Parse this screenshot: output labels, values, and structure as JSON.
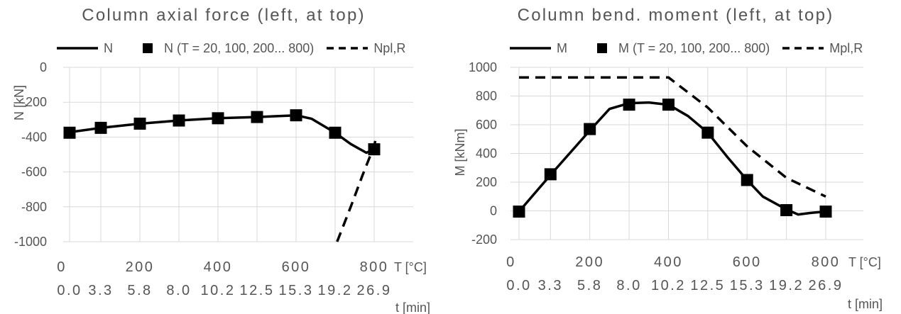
{
  "chart_data": [
    {
      "type": "line",
      "title": "Column axial force (left, at top)",
      "ylabel": "N [kN]",
      "xlabel": "T [°C]",
      "x2label": "t [min]",
      "ylim": [
        -1000,
        0
      ],
      "yticks": [
        0,
        -200,
        -400,
        -600,
        -800,
        -1000
      ],
      "xlim": [
        20,
        800
      ],
      "xticks": [
        0,
        200,
        400,
        600,
        800
      ],
      "time_tick_labels": [
        "0.0",
        "3.3",
        "5.8",
        "8.0",
        "10.2",
        "12.5",
        "15.3",
        "19.2",
        "26.9"
      ],
      "time_tick_T": [
        20,
        100,
        200,
        300,
        400,
        500,
        600,
        700,
        800
      ],
      "grid": true,
      "legend_position": "top",
      "series": [
        {
          "name": "N",
          "style": "solid",
          "x": [
            20,
            100,
            200,
            300,
            400,
            500,
            600,
            640,
            700,
            740,
            780,
            800
          ],
          "y": [
            -372,
            -347,
            -323,
            -305,
            -292,
            -285,
            -275,
            -295,
            -375,
            -440,
            -490,
            -470
          ]
        },
        {
          "name": "N (T = 20, 100, 200... 800)",
          "style": "square-markers",
          "x": [
            20,
            100,
            200,
            300,
            400,
            500,
            600,
            700,
            800
          ],
          "y": [
            -375,
            -347,
            -323,
            -305,
            -292,
            -285,
            -275,
            -375,
            -470
          ]
        },
        {
          "name": "Npl,R",
          "style": "dashed",
          "x": [
            705,
            740,
            770,
            800,
            805
          ],
          "y": [
            -1000,
            -800,
            -620,
            -450,
            -400
          ]
        }
      ]
    },
    {
      "type": "line",
      "title": "Column bend. moment (left, at top)",
      "ylabel": "M [kNm]",
      "xlabel": "T [°C]",
      "x2label": "t [min]",
      "ylim": [
        -200,
        1000
      ],
      "yticks": [
        1000,
        800,
        600,
        400,
        200,
        0,
        -200
      ],
      "xlim": [
        20,
        800
      ],
      "xticks": [
        0,
        200,
        400,
        600,
        800
      ],
      "time_tick_labels": [
        "0.0",
        "3.3",
        "5.8",
        "8.0",
        "10.2",
        "12.5",
        "15.3",
        "19.2",
        "26.9"
      ],
      "time_tick_T": [
        20,
        100,
        200,
        300,
        400,
        500,
        600,
        700,
        800
      ],
      "grid": true,
      "legend_position": "top",
      "series": [
        {
          "name": "M",
          "style": "solid",
          "x": [
            20,
            100,
            200,
            250,
            300,
            350,
            400,
            450,
            500,
            550,
            600,
            640,
            700,
            730,
            760,
            800
          ],
          "y": [
            -5,
            250,
            560,
            710,
            750,
            755,
            740,
            660,
            545,
            375,
            215,
            100,
            10,
            -25,
            -15,
            -5
          ]
        },
        {
          "name": "M (T = 20, 100, 200... 800)",
          "style": "square-markers",
          "x": [
            20,
            100,
            200,
            300,
            400,
            500,
            600,
            700,
            800
          ],
          "y": [
            -5,
            255,
            570,
            740,
            740,
            545,
            215,
            5,
            -5
          ]
        },
        {
          "name": "Mpl,R",
          "style": "dashed",
          "x": [
            20,
            400,
            500,
            600,
            700,
            800
          ],
          "y": [
            930,
            930,
            720,
            450,
            230,
            100
          ]
        }
      ]
    }
  ]
}
